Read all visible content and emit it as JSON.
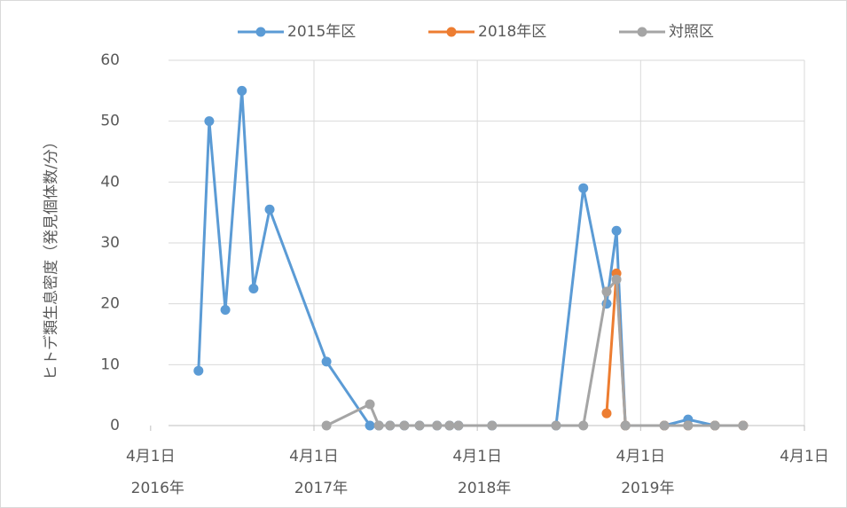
{
  "chart_data": {
    "type": "line",
    "ylabel": "ヒトデ類生息密度（発見個体数/分）",
    "x": [
      107,
      131,
      167,
      204,
      230,
      266,
      393,
      490,
      510,
      535,
      567,
      601,
      640,
      668,
      688,
      763,
      906,
      967,
      1019,
      1041,
      1061,
      1148,
      1201,
      1261,
      1324
    ],
    "series": [
      {
        "name": "2015年区",
        "color": "#5b9bd5",
        "values": [
          9,
          50,
          19,
          55,
          22.5,
          35.5,
          10.5,
          0,
          0,
          0,
          0,
          0,
          0,
          0,
          0,
          0,
          0,
          39,
          20,
          32,
          0,
          0,
          1,
          0,
          0
        ]
      },
      {
        "name": "2018年区",
        "color": "#ed7d31",
        "values": [
          null,
          null,
          null,
          null,
          null,
          null,
          null,
          null,
          null,
          null,
          null,
          null,
          null,
          null,
          null,
          null,
          null,
          null,
          2,
          25,
          0,
          0,
          0,
          0,
          0
        ]
      },
      {
        "name": "対照区",
        "color": "#a5a5a5",
        "values": [
          null,
          null,
          null,
          null,
          null,
          null,
          0,
          3.5,
          0,
          0,
          0,
          0,
          0,
          0,
          0,
          0,
          0,
          0,
          22,
          24,
          0,
          0,
          0,
          0,
          0
        ]
      }
    ],
    "xlim": [
      40,
      1461
    ],
    "xticks": [
      {
        "value": 0,
        "label": "4月1日"
      },
      {
        "value": 365,
        "label": "4月1日"
      },
      {
        "value": 730,
        "label": "4月1日"
      },
      {
        "value": 1095,
        "label": "4月1日"
      },
      {
        "value": 1461,
        "label": "4月1日"
      }
    ],
    "xtick_years": [
      "2016年",
      "2017年",
      "2018年",
      "2019年"
    ],
    "ylim": [
      0,
      60
    ],
    "yticks": [
      0,
      10,
      20,
      30,
      40,
      50,
      60
    ],
    "grid": true,
    "legend": "top"
  }
}
